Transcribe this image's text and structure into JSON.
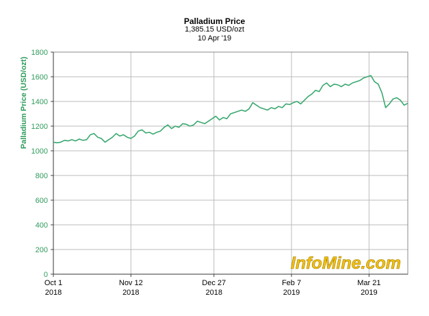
{
  "chart_data": {
    "type": "line",
    "title": "Palladium Price",
    "subtitle_price": "1,385.15 USD/ozt",
    "subtitle_date": "10 Apr '19",
    "ylabel": "Palladium Price (USD/ozt)",
    "xlabel": "",
    "ylim": [
      0,
      1800
    ],
    "yticks": [
      0,
      200,
      400,
      600,
      800,
      1000,
      1200,
      1400,
      1600,
      1800
    ],
    "xlim": [
      "2018-10-01",
      "2019-04-11"
    ],
    "xticks": [
      {
        "date": "2018-10-01",
        "label1": "Oct 1",
        "label2": "2018"
      },
      {
        "date": "2018-11-12",
        "label1": "Nov 12",
        "label2": "2018"
      },
      {
        "date": "2018-12-27",
        "label1": "Dec 27",
        "label2": "2018"
      },
      {
        "date": "2019-02-07",
        "label1": "Feb 7",
        "label2": "2019"
      },
      {
        "date": "2019-03-21",
        "label1": "Mar 21",
        "label2": "2019"
      }
    ],
    "grid": true,
    "watermark": "InfoMine.com",
    "colors": {
      "line": "#3aa870",
      "axis_text": "#2e9b5c",
      "grid": "#bbbbbb",
      "watermark": "#f2c012"
    },
    "series": [
      {
        "x": [
          "2018-10-01",
          "2018-10-03",
          "2018-10-05",
          "2018-10-07",
          "2018-10-09",
          "2018-10-11",
          "2018-10-13",
          "2018-10-15",
          "2018-10-17",
          "2018-10-19",
          "2018-10-21",
          "2018-10-23",
          "2018-10-25",
          "2018-10-27",
          "2018-10-29",
          "2018-10-31",
          "2018-11-02",
          "2018-11-04",
          "2018-11-06",
          "2018-11-08",
          "2018-11-10",
          "2018-11-12",
          "2018-11-14",
          "2018-11-16",
          "2018-11-18",
          "2018-11-20",
          "2018-11-22",
          "2018-11-24",
          "2018-11-26",
          "2018-11-28",
          "2018-11-30",
          "2018-12-02",
          "2018-12-04",
          "2018-12-06",
          "2018-12-08",
          "2018-12-10",
          "2018-12-12",
          "2018-12-14",
          "2018-12-16",
          "2018-12-18",
          "2018-12-20",
          "2018-12-22",
          "2018-12-24",
          "2018-12-26",
          "2018-12-28",
          "2018-12-30",
          "2019-01-01",
          "2019-01-03",
          "2019-01-05",
          "2019-01-07",
          "2019-01-09",
          "2019-01-11",
          "2019-01-13",
          "2019-01-15",
          "2019-01-17",
          "2019-01-19",
          "2019-01-21",
          "2019-01-23",
          "2019-01-25",
          "2019-01-27",
          "2019-01-29",
          "2019-01-31",
          "2019-02-02",
          "2019-02-04",
          "2019-02-06",
          "2019-02-08",
          "2019-02-10",
          "2019-02-12",
          "2019-02-14",
          "2019-02-16",
          "2019-02-18",
          "2019-02-20",
          "2019-02-22",
          "2019-02-24",
          "2019-02-26",
          "2019-02-28",
          "2019-03-02",
          "2019-03-04",
          "2019-03-06",
          "2019-03-08",
          "2019-03-10",
          "2019-03-12",
          "2019-03-14",
          "2019-03-16",
          "2019-03-18",
          "2019-03-20",
          "2019-03-22",
          "2019-03-24",
          "2019-03-26",
          "2019-03-28",
          "2019-03-30",
          "2019-04-01",
          "2019-04-03",
          "2019-04-05",
          "2019-04-07",
          "2019-04-09",
          "2019-04-11"
        ],
        "values": [
          1070,
          1065,
          1070,
          1085,
          1080,
          1090,
          1080,
          1095,
          1085,
          1090,
          1130,
          1140,
          1110,
          1100,
          1070,
          1090,
          1110,
          1140,
          1120,
          1130,
          1110,
          1100,
          1120,
          1160,
          1170,
          1145,
          1150,
          1135,
          1150,
          1160,
          1190,
          1210,
          1180,
          1200,
          1190,
          1220,
          1215,
          1200,
          1210,
          1240,
          1230,
          1220,
          1240,
          1260,
          1280,
          1250,
          1270,
          1260,
          1300,
          1310,
          1320,
          1330,
          1320,
          1340,
          1390,
          1370,
          1350,
          1340,
          1330,
          1350,
          1340,
          1360,
          1350,
          1380,
          1375,
          1390,
          1400,
          1380,
          1410,
          1440,
          1460,
          1490,
          1480,
          1530,
          1550,
          1520,
          1540,
          1535,
          1520,
          1540,
          1530,
          1550,
          1560,
          1570,
          1590,
          1600,
          1610,
          1560,
          1540,
          1470,
          1350,
          1380,
          1420,
          1430,
          1410,
          1370,
          1385
        ]
      }
    ]
  }
}
